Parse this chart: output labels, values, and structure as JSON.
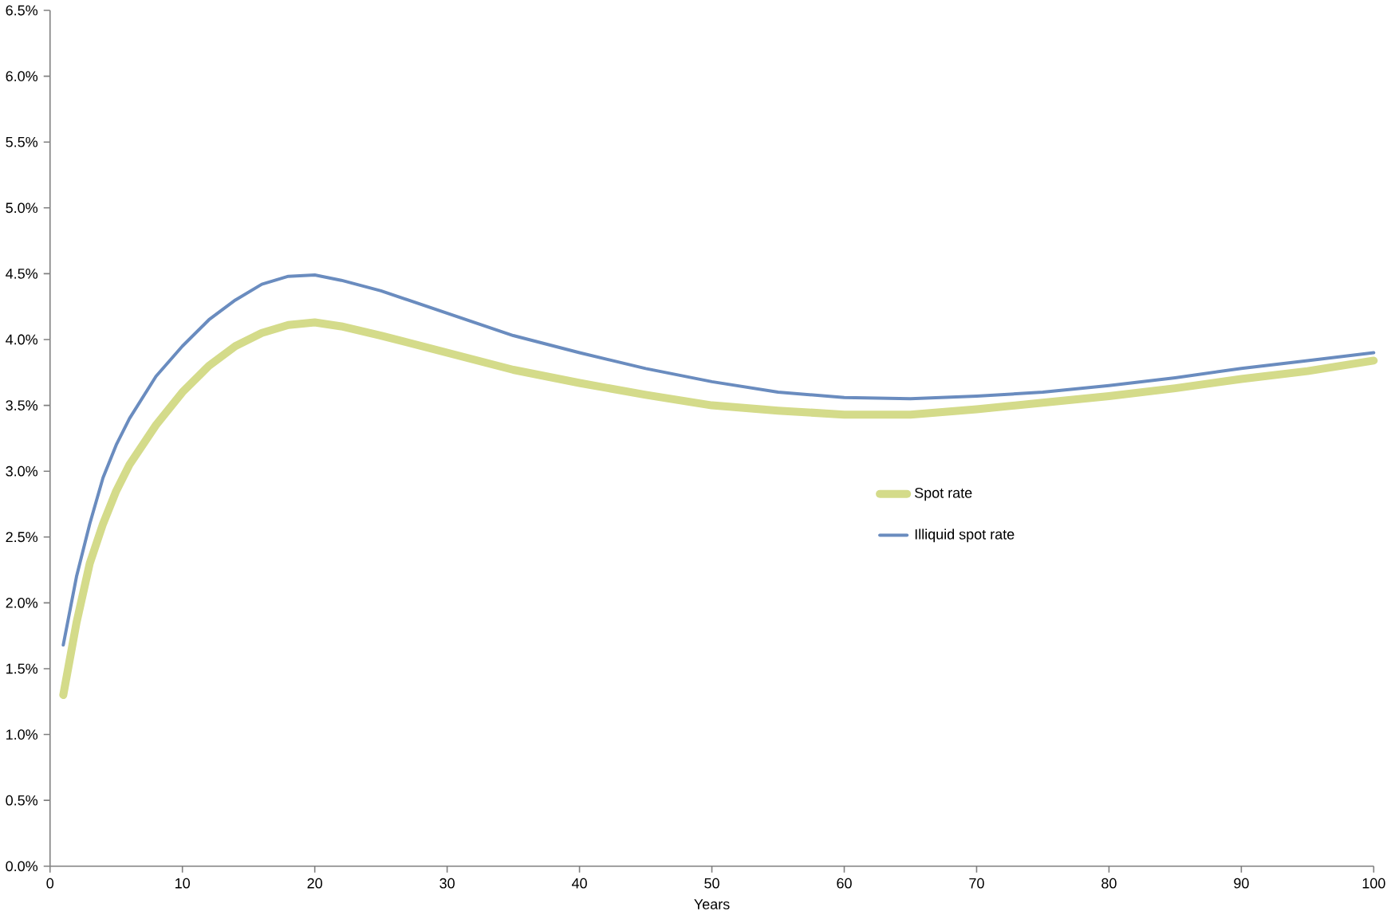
{
  "chart_data": {
    "type": "line",
    "xlabel": "Years",
    "x": [
      1,
      2,
      3,
      4,
      5,
      6,
      8,
      10,
      12,
      14,
      16,
      18,
      20,
      22,
      25,
      30,
      35,
      40,
      45,
      50,
      55,
      60,
      65,
      70,
      75,
      80,
      85,
      90,
      95,
      100
    ],
    "series": [
      {
        "name": "Spot rate",
        "color": "#d4db8a",
        "values": [
          1.3,
          1.85,
          2.3,
          2.6,
          2.85,
          3.05,
          3.35,
          3.6,
          3.8,
          3.95,
          4.05,
          4.11,
          4.13,
          4.1,
          4.03,
          3.9,
          3.77,
          3.67,
          3.58,
          3.5,
          3.46,
          3.43,
          3.43,
          3.47,
          3.52,
          3.57,
          3.63,
          3.7,
          3.76,
          3.84
        ]
      },
      {
        "name": "Illiquid spot rate",
        "color": "#6a8cbf",
        "values": [
          1.68,
          2.2,
          2.6,
          2.95,
          3.2,
          3.4,
          3.72,
          3.95,
          4.15,
          4.3,
          4.42,
          4.48,
          4.49,
          4.45,
          4.37,
          4.2,
          4.03,
          3.9,
          3.78,
          3.68,
          3.6,
          3.56,
          3.55,
          3.57,
          3.6,
          3.65,
          3.71,
          3.78,
          3.84,
          3.9
        ]
      }
    ],
    "xlim": [
      0,
      100
    ],
    "xticks": [
      0,
      10,
      20,
      30,
      40,
      50,
      60,
      70,
      80,
      90,
      100
    ],
    "ylim": [
      0,
      6.5
    ],
    "yticks": [
      {
        "value": 0,
        "label": "0.0%"
      },
      {
        "value": 0.5,
        "label": "0.5%"
      },
      {
        "value": 1,
        "label": "1.0%"
      },
      {
        "value": 1.5,
        "label": "1.5%"
      },
      {
        "value": 2,
        "label": "2.0%"
      },
      {
        "value": 2.5,
        "label": "2.5%"
      },
      {
        "value": 3,
        "label": "3.0%"
      },
      {
        "value": 3.5,
        "label": "3.5%"
      },
      {
        "value": 4,
        "label": "4.0%"
      },
      {
        "value": 4.5,
        "label": "4.5%"
      },
      {
        "value": 5,
        "label": "5.0%"
      },
      {
        "value": 5.5,
        "label": "5.5%"
      },
      {
        "value": 6,
        "label": "6.0%"
      },
      {
        "value": 6.5,
        "label": "6.5%"
      }
    ],
    "legend": "right",
    "grid": false,
    "marker": "none",
    "line_style": "solid"
  }
}
